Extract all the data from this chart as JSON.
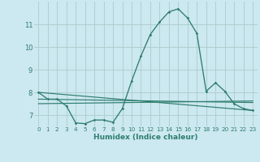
{
  "title": "",
  "xlabel": "Humidex (Indice chaleur)",
  "background_color": "#cce8f0",
  "grid_color": "#aacccc",
  "line_color": "#2e7d6e",
  "xlim": [
    -0.5,
    23.5
  ],
  "ylim": [
    6.5,
    12.0
  ],
  "yticks": [
    7,
    8,
    9,
    10,
    11
  ],
  "xticks": [
    0,
    1,
    2,
    3,
    4,
    5,
    6,
    7,
    8,
    9,
    10,
    11,
    12,
    13,
    14,
    15,
    16,
    17,
    18,
    19,
    20,
    21,
    22,
    23
  ],
  "main_x": [
    0,
    1,
    2,
    3,
    4,
    5,
    6,
    7,
    8,
    9,
    10,
    11,
    12,
    13,
    14,
    15,
    16,
    17,
    18,
    19,
    20,
    21,
    22,
    23
  ],
  "main_y": [
    8.0,
    7.7,
    7.7,
    7.4,
    6.65,
    6.62,
    6.78,
    6.78,
    6.68,
    7.28,
    8.5,
    9.6,
    10.55,
    11.1,
    11.55,
    11.68,
    11.28,
    10.6,
    8.05,
    8.42,
    8.05,
    7.5,
    7.28,
    7.2
  ],
  "line2_x": [
    0,
    23
  ],
  "line2_y": [
    8.0,
    7.2
  ],
  "line3_x": [
    0,
    23
  ],
  "line3_y": [
    7.7,
    7.55
  ],
  "line4_x": [
    0,
    23
  ],
  "line4_y": [
    7.5,
    7.62
  ]
}
